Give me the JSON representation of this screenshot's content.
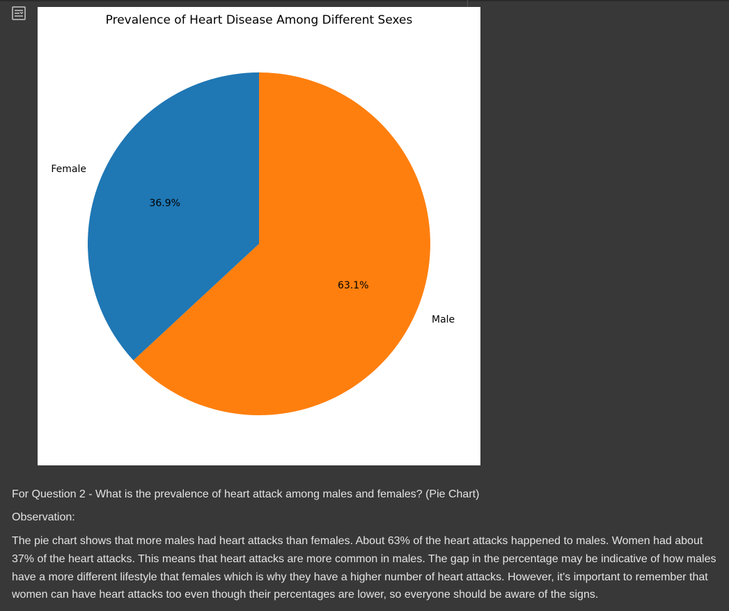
{
  "output": {
    "toggle_icon": "output-toggle-icon"
  },
  "chart_data": {
    "type": "pie",
    "title": "Prevalence of Heart Disease Among Different Sexes",
    "slices": [
      {
        "label": "Female",
        "value": 36.9,
        "percent_label": "36.9%",
        "color": "#1f77b4"
      },
      {
        "label": "Male",
        "value": 63.1,
        "percent_label": "63.1%",
        "color": "#ff7f0e"
      }
    ],
    "start_angle": 90,
    "direction": "counterclockwise",
    "labels_outside": true,
    "percent_labels_inside": true
  },
  "markdown": {
    "question": "For Question 2 - What is the prevalence of heart attack among males and females? (Pie Chart)",
    "observation_heading": "Observation:",
    "observation_body": "The pie chart shows that more males had heart attacks than females. About 63% of the heart attacks happened to males. Women had about 37% of the heart attacks. This means that heart attacks are more common in males. The gap in the percentage may be indicative of how males have a more different lifestyle that females which is why they have a higher number of heart attacks. However, it's important to remember that women can have heart attacks too even though their percentages are lower, so everyone should be aware of the signs."
  },
  "colors": {
    "background": "#383838",
    "text": "#e3e3e3",
    "figure_background": "#ffffff"
  }
}
